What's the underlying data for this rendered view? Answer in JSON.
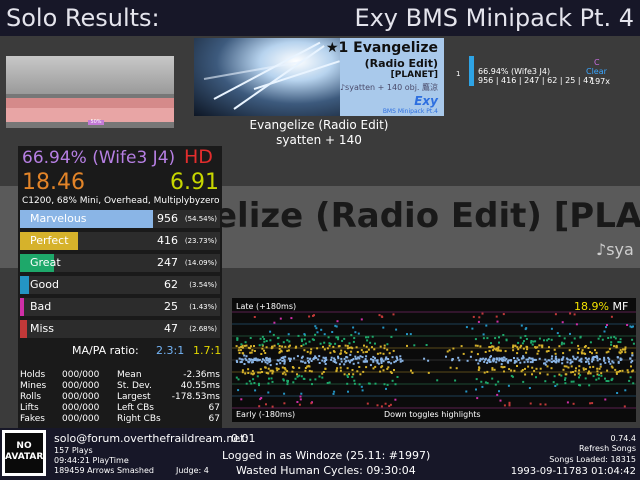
{
  "header": {
    "screen_title": "Solo Results:",
    "pack_title": "Exy BMS Minipack Pt. 4"
  },
  "life_graph": {
    "marker_label": "50%"
  },
  "banner": {
    "title": "★1 Evangelize",
    "subtitle": "(Radio Edit)",
    "tag": "[PLANET]",
    "meta": "♪syatten + 140 obj. 鷹涼",
    "logo": "Exy",
    "logo_sub": "BMS Minipack Pt.4"
  },
  "song": {
    "title": "Evangelize (Radio Edit)",
    "artist": "syatten + 140"
  },
  "mini_score": {
    "rank": "1",
    "score": "66.94% (Wife3 J4)",
    "counts": "956 | 416 | 247 | 62 | 25 | 47",
    "grade": "C",
    "clear": "Clear",
    "combo": "197x"
  },
  "background_strip": {
    "title": "elize (Radio Edit) [PLA",
    "artist": "♪sya"
  },
  "score": {
    "percent": "66.94% (Wife3 J4)",
    "grade": "HD",
    "ssr": "18.46",
    "msd": "6.91",
    "mods": "C1200, 68% Mini, Overhead, Multiplybyzero"
  },
  "judgments": [
    {
      "name": "Marvelous",
      "count": "956",
      "percent": "(54.54%)",
      "fraction": 0.5454,
      "color": "#8ab5e6"
    },
    {
      "name": "Perfect",
      "count": "416",
      "percent": "(23.73%)",
      "fraction": 0.2373,
      "color": "#d6b22b"
    },
    {
      "name": "Great",
      "count": "247",
      "percent": "(14.09%)",
      "fraction": 0.1409,
      "color": "#1ea86a"
    },
    {
      "name": "Good",
      "count": "62",
      "percent": "(3.54%)",
      "fraction": 0.0354,
      "color": "#2495c4"
    },
    {
      "name": "Bad",
      "count": "25",
      "percent": "(1.43%)",
      "fraction": 0.0143,
      "color": "#cf2fa7"
    },
    {
      "name": "Miss",
      "count": "47",
      "percent": "(2.68%)",
      "fraction": 0.0268,
      "color": "#c23939"
    }
  ],
  "ratio": {
    "label": "MA/PA ratio:",
    "ma": "2.3:1",
    "pa": "1.7:1"
  },
  "stats_left": [
    {
      "label": "Holds",
      "value": "000/000"
    },
    {
      "label": "Mines",
      "value": "000/000"
    },
    {
      "label": "Rolls",
      "value": "000/000"
    },
    {
      "label": "Lifts",
      "value": "000/000"
    },
    {
      "label": "Fakes",
      "value": "000/000"
    }
  ],
  "stats_right": [
    {
      "label": "Mean",
      "value": "-2.36ms"
    },
    {
      "label": "St. Dev.",
      "value": "40.55ms"
    },
    {
      "label": "Largest",
      "value": "-178.53ms"
    },
    {
      "label": "Left CBs",
      "value": "67"
    },
    {
      "label": "Right CBs",
      "value": "67"
    }
  ],
  "offset_plot": {
    "late_label": "Late (+180ms)",
    "early_label": "Early (-180ms)",
    "mf_value": "18.9%",
    "mf_label": "MF",
    "hint": "Down toggles highlights"
  },
  "chart_data": {
    "type": "scatter",
    "title": "",
    "xlabel": "",
    "ylabel": "",
    "ylim": [
      -180,
      180
    ],
    "series": [
      {
        "judgment": "Marvelous",
        "color": "#8ab5e6",
        "count": 956
      },
      {
        "judgment": "Perfect",
        "color": "#d6b22b",
        "count": 416
      },
      {
        "judgment": "Great",
        "color": "#1ea86a",
        "count": 247
      },
      {
        "judgment": "Good",
        "color": "#2495c4",
        "count": 62
      },
      {
        "judgment": "Bad",
        "color": "#cf2fa7",
        "count": 25
      },
      {
        "judgment": "Miss",
        "color": "#c23939",
        "count": 47
      }
    ]
  },
  "footer": {
    "avatar_text": "NO AVATAR",
    "profile_name": "solo@forum.overthefraildream.net:",
    "rating": "0.01",
    "plays": "157 Plays",
    "playtime": "09:44:21 PlayTime",
    "arrows": "189459 Arrows Smashed",
    "judge": "Judge: 4",
    "login": "Logged in as Windoze (25.11: #1997)",
    "wasted": "Wasted Human Cycles: 09:30:04",
    "version": "0.74.4",
    "refresh": "Refresh Songs",
    "songs_loaded": "Songs Loaded: 18315",
    "clock": "1993-09-11783 01:04:42"
  }
}
